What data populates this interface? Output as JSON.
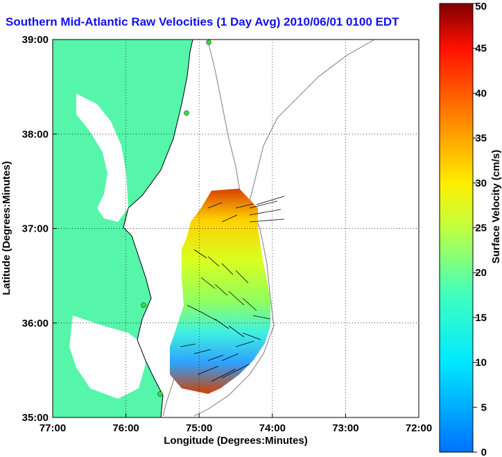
{
  "title": "Southern Mid-Atlantic Raw Velocities (1 Day Avg) 2010/06/01 0100 EDT",
  "map": {
    "xlabel": "Longitude (Degrees:Minutes)",
    "ylabel": "Latitude (Degrees:Minutes)",
    "x_ticks": [
      "77:00",
      "76:00",
      "75:00",
      "74:00",
      "73:00",
      "72:00"
    ],
    "y_ticks": [
      "39:00",
      "38:00",
      "37:00",
      "36:00",
      "35:00"
    ],
    "land_color": "#55f5aa",
    "grid": "dotted"
  },
  "colorbar": {
    "label": "Surface Velocity (cm/s)",
    "ticks": [
      "50",
      "45",
      "40",
      "35",
      "30",
      "25",
      "20",
      "15",
      "10",
      "5",
      "0"
    ],
    "min": 0,
    "max": 50,
    "colormap": "jet"
  }
}
